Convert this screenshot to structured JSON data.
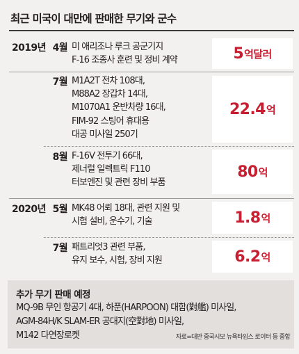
{
  "title": "최근 미국이 대만에 판매한 무기와 군수",
  "sales": [
    {
      "year": "2019년",
      "month": "4월",
      "lines": [
        "미 애리조나 루크 공군기지",
        "F-16 조종사 훈련 및 정비 계약"
      ],
      "amount": "5",
      "unit": "억달러"
    },
    {
      "year": "",
      "month": "7월",
      "lines": [
        "M1A2T 전차 108대,",
        "M88A2 장갑차 14대,",
        "M1070A1 운반차량 16대,",
        "FIM-92 스팅어 휴대용",
        "대공 미사일 250기"
      ],
      "amount": "22.4",
      "unit": "억"
    },
    {
      "year": "",
      "month": "8월",
      "lines": [
        "F-16V 전투기 66대,",
        "제너럴 일렉트릭 F110",
        "터보엔진 및 관련 장비 부품"
      ],
      "amount": "80",
      "unit": "억"
    },
    {
      "year": "2020년",
      "month": "5월",
      "lines": [
        "MK48 어뢰 18대, 관련 지원 및",
        "시험 설비, 운수기, 기술"
      ],
      "amount": "1.8",
      "unit": "억"
    },
    {
      "year": "",
      "month": "7월",
      "lines": [
        "패트리엇3 관련 부품,",
        "유지 보수, 시험, 장비 지원"
      ],
      "amount": "6.2",
      "unit": "억"
    }
  ],
  "future": {
    "title": "추가 무기 판매 예정",
    "lines": [
      "MQ-9B 무인 항공기 4대, 하푼(HARPOON) 대함(對艦) 미사일,",
      "AGM-84H/K SLAM-ER 공대지(空對地) 미사일,",
      "M142 다연장로켓"
    ],
    "source": "자료=대만 중국시보 뉴욕타임스 로이터 등 종합"
  },
  "colors": {
    "background": "#f3f1ef",
    "amount_text": "#c81e32",
    "future_box": "#e2dfdc"
  }
}
